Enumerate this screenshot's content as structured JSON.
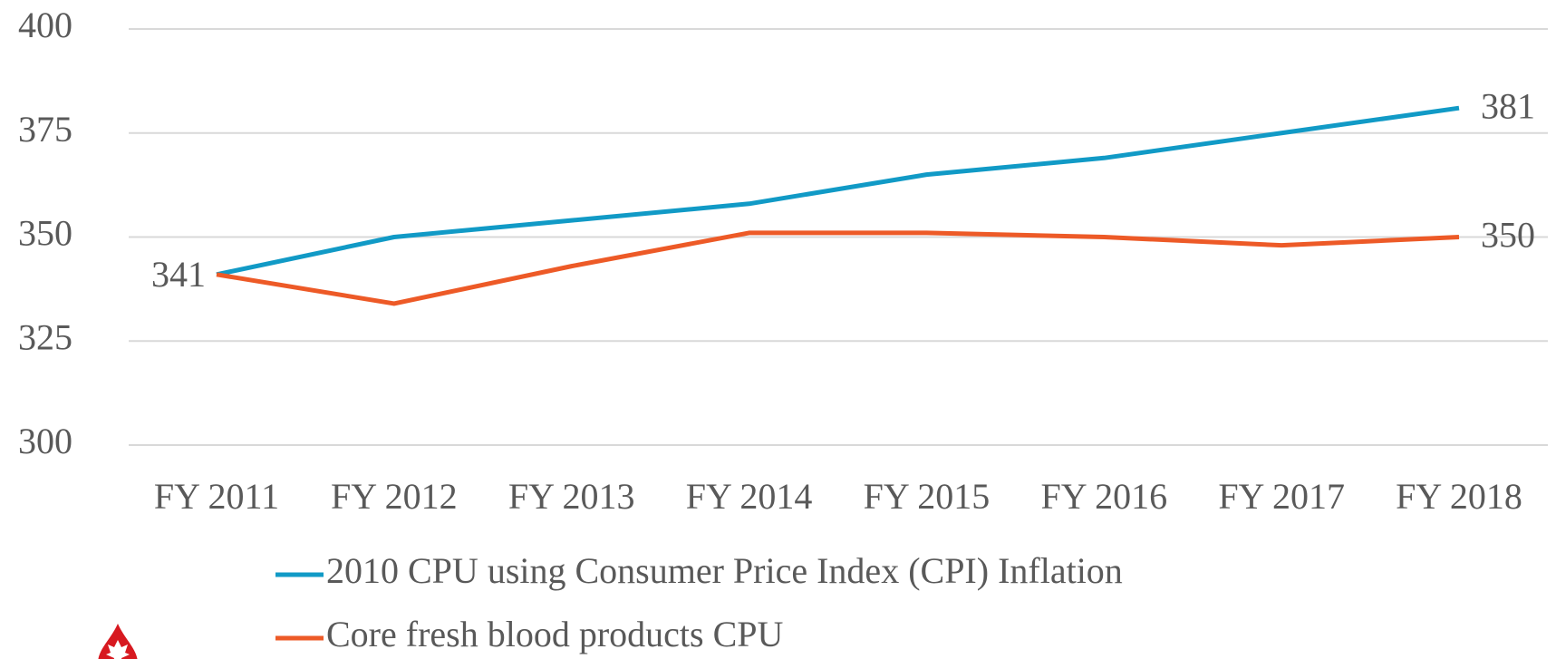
{
  "chart_data": {
    "type": "line",
    "categories": [
      "FY 2011",
      "FY 2012",
      "FY 2013",
      "FY 2014",
      "FY 2015",
      "FY 2016",
      "FY 2017",
      "FY 2018"
    ],
    "series": [
      {
        "name": "2010 CPU using Consumer Price Index (CPI) Inflation",
        "color": "#119ac6",
        "values": [
          341,
          350,
          354,
          358,
          365,
          369,
          375,
          381
        ]
      },
      {
        "name": "Core fresh blood products CPU",
        "color": "#ed5a27",
        "values": [
          341,
          334,
          343,
          351,
          351,
          350,
          348,
          350
        ]
      }
    ],
    "ylim": [
      300,
      400
    ],
    "yticks": [
      300,
      325,
      350,
      375,
      400
    ],
    "grid": true,
    "legend": "bottom"
  }
}
